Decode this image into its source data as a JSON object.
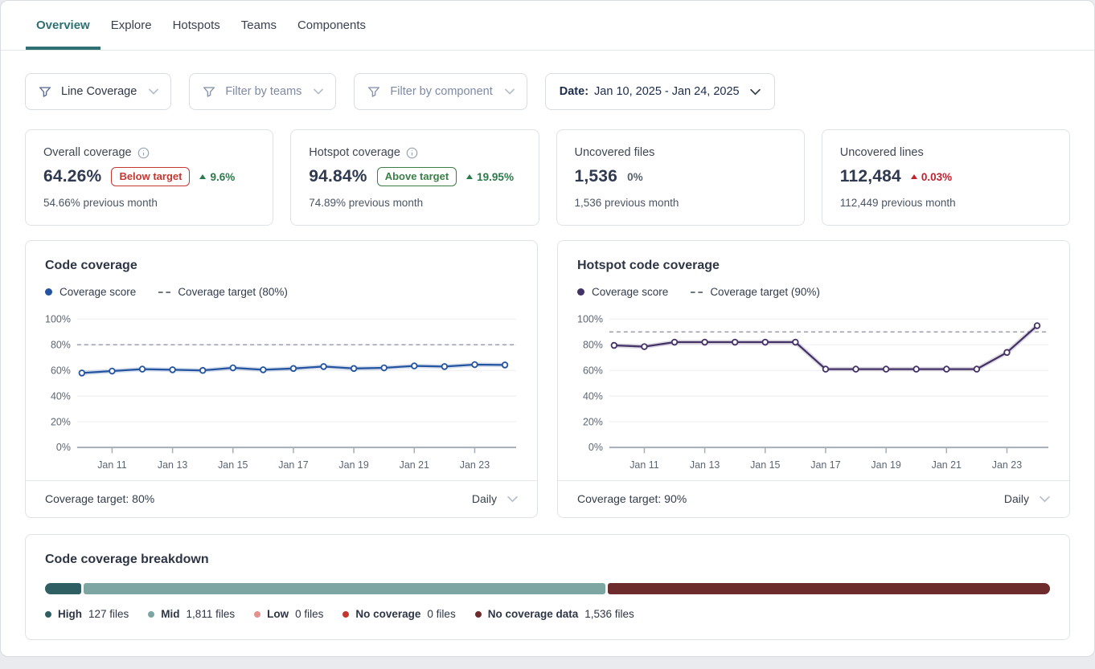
{
  "tabs": [
    {
      "label": "Overview",
      "active": true
    },
    {
      "label": "Explore",
      "active": false
    },
    {
      "label": "Hotspots",
      "active": false
    },
    {
      "label": "Teams",
      "active": false
    },
    {
      "label": "Components",
      "active": false
    }
  ],
  "filters": {
    "metric": {
      "label": "Line Coverage"
    },
    "teams": {
      "label": "Filter by teams"
    },
    "component": {
      "label": "Filter by component"
    },
    "date": {
      "prefix": "Date:",
      "range": "Jan 10, 2025 - Jan 24, 2025"
    }
  },
  "stat_cards": [
    {
      "label": "Overall coverage",
      "value": "64.26%",
      "badge": "Below target",
      "delta": "9.6%",
      "previous": "54.66% previous month"
    },
    {
      "label": "Hotspot coverage",
      "value": "94.84%",
      "badge": "Above target",
      "delta": "19.95%",
      "previous": "74.89% previous month"
    },
    {
      "label": "Uncovered files",
      "value": "1,536",
      "delta": "0%",
      "previous": "1,536 previous month"
    },
    {
      "label": "Uncovered lines",
      "value": "112,484",
      "delta": "0.03%",
      "previous": "112,449 previous month"
    }
  ],
  "chart_data": [
    {
      "type": "line",
      "title": "Code coverage",
      "legend": {
        "score": "Coverage score",
        "target": "Coverage target (80%)"
      },
      "x": [
        "Jan 10",
        "Jan 11",
        "Jan 12",
        "Jan 13",
        "Jan 14",
        "Jan 15",
        "Jan 16",
        "Jan 17",
        "Jan 18",
        "Jan 19",
        "Jan 20",
        "Jan 21",
        "Jan 22",
        "Jan 23",
        "Jan 24"
      ],
      "values": [
        58,
        59.5,
        61,
        60.5,
        60,
        62,
        60.5,
        61.5,
        63,
        61.5,
        62,
        63.5,
        63,
        64.5,
        64.26
      ],
      "target": 80,
      "ylim": [
        0,
        100
      ],
      "yticks": [
        0,
        20,
        40,
        60,
        80,
        100
      ],
      "xtick_indices": [
        1,
        3,
        5,
        7,
        9,
        11,
        13
      ],
      "line_color": "#24549f",
      "target_color": "#888e99",
      "grid": true,
      "footer_label": "Coverage target: 80%",
      "interval_label": "Daily"
    },
    {
      "type": "line",
      "title": "Hotspot code coverage",
      "legend": {
        "score": "Coverage score",
        "target": "Coverage target (90%)"
      },
      "x": [
        "Jan 10",
        "Jan 11",
        "Jan 12",
        "Jan 13",
        "Jan 14",
        "Jan 15",
        "Jan 16",
        "Jan 17",
        "Jan 18",
        "Jan 19",
        "Jan 20",
        "Jan 21",
        "Jan 22",
        "Jan 23",
        "Jan 24"
      ],
      "values": [
        79.5,
        78.5,
        82,
        82,
        82,
        82,
        82,
        61,
        61,
        61,
        61,
        61,
        61,
        74,
        94.84
      ],
      "target": 90,
      "ylim": [
        0,
        100
      ],
      "yticks": [
        0,
        20,
        40,
        60,
        80,
        100
      ],
      "xtick_indices": [
        1,
        3,
        5,
        7,
        9,
        11,
        13
      ],
      "line_color": "#443266",
      "target_color": "#888e99",
      "grid": true,
      "footer_label": "Coverage target: 90%",
      "interval_label": "Daily"
    }
  ],
  "breakdown": {
    "title": "Code coverage breakdown",
    "segments": [
      {
        "name": "High",
        "count_label": "127 files",
        "value": 127,
        "color": "#2f5f63"
      },
      {
        "name": "Mid",
        "count_label": "1,811 files",
        "value": 1811,
        "color": "#7da5a2"
      },
      {
        "name": "Low",
        "count_label": "0 files",
        "value": 0,
        "color": "#e4908d"
      },
      {
        "name": "No coverage",
        "count_label": "0 files",
        "value": 0,
        "color": "#c1392e"
      },
      {
        "name": "No coverage data",
        "count_label": "1,536 files",
        "value": 1536,
        "color": "#6e2b2b"
      }
    ]
  },
  "colors": {
    "accent_teal": "#2f7173",
    "danger": "#c23934",
    "success": "#3c7d47",
    "chart1_line": "#24549f",
    "chart2_line": "#443266"
  }
}
